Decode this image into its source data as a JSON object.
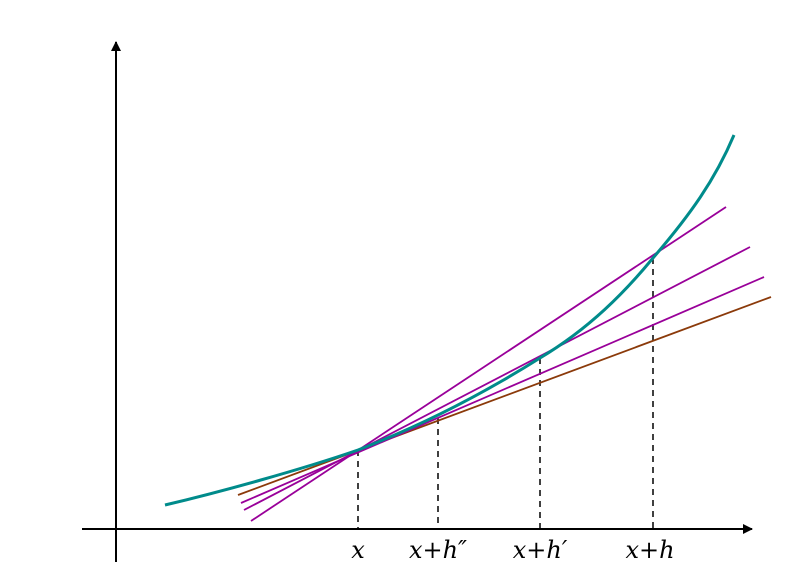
{
  "diagram": {
    "labels": {
      "x": "x",
      "x_h2": "x+h″",
      "x_h1": "x+h′",
      "x_h": "x+h"
    },
    "colors": {
      "axes": "#000000",
      "curve": "#008b8b",
      "tangent": "#8b3a0a",
      "secant": "#990099",
      "guide": "#000000"
    }
  }
}
